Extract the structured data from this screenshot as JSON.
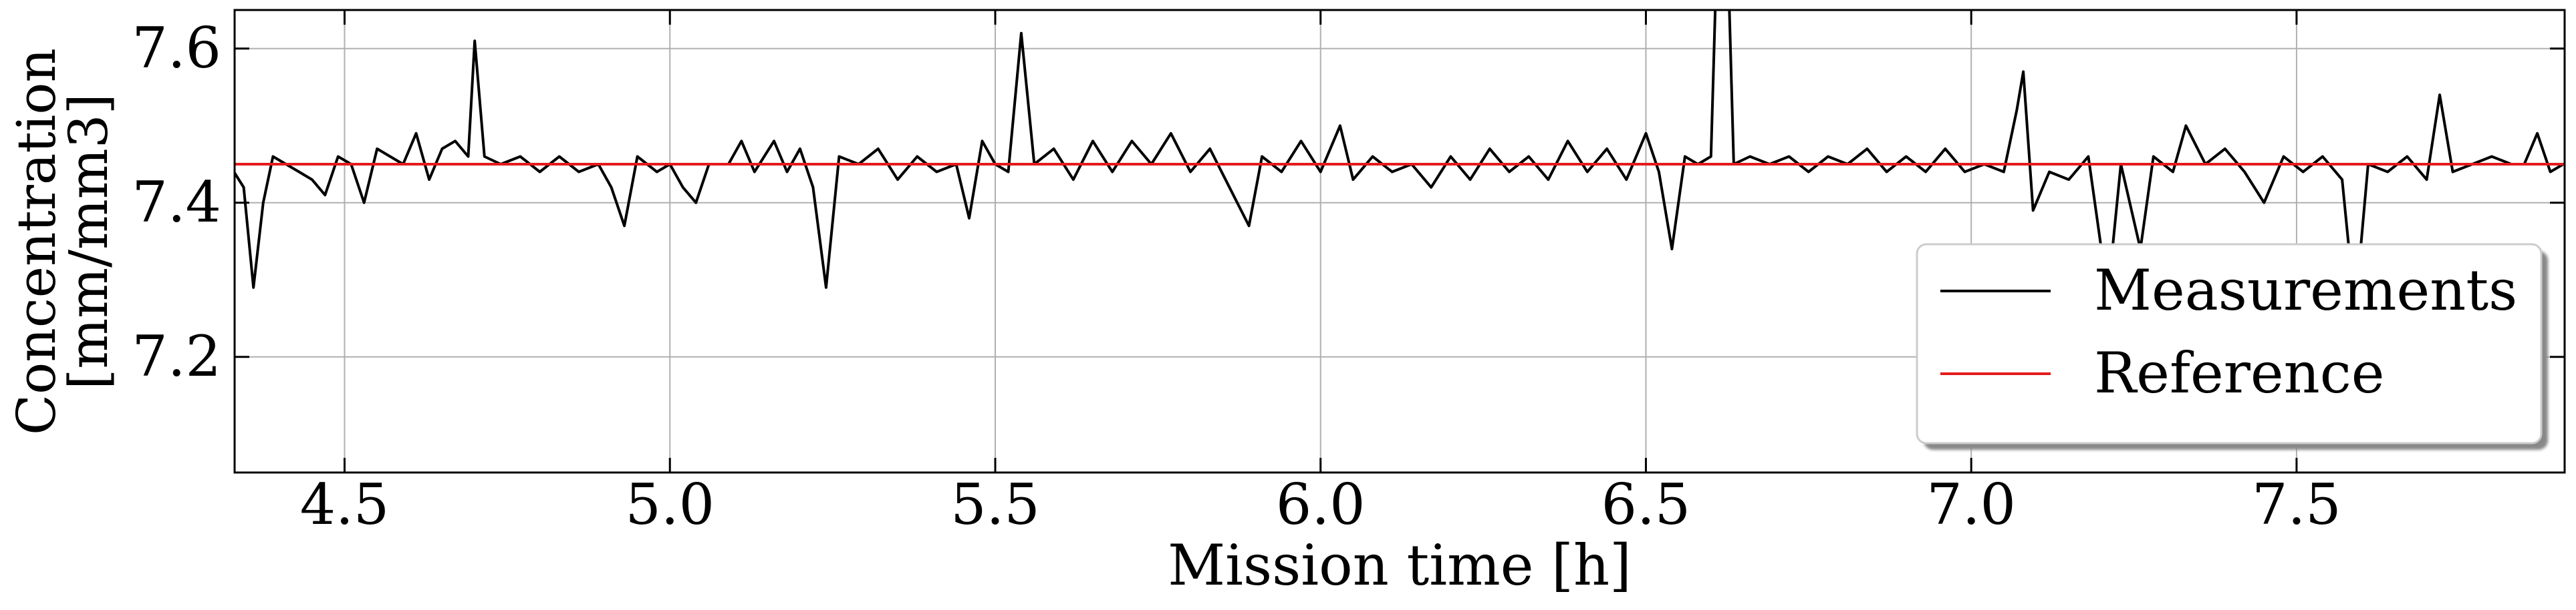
{
  "chart_data": {
    "type": "line",
    "x_label": "Mission time [h]",
    "y_label_lines": [
      "Concentration",
      "[mm/mm3]"
    ],
    "xlim": [
      4.331,
      7.912
    ],
    "ylim": [
      7.05,
      7.65
    ],
    "xticks": [
      4.5,
      {
        "value": 5,
        "label": "5.0"
      },
      5.5,
      {
        "value": 6,
        "label": "6.0"
      },
      6.5,
      {
        "value": 7,
        "label": "7.0"
      },
      7.5
    ],
    "yticks": [
      7.2,
      7.4,
      7.6
    ],
    "grid": true,
    "legend": "lower right",
    "series": [
      {
        "name": "Measurements",
        "color": "#000000",
        "x": [
          4.33,
          4.345,
          4.36,
          4.375,
          4.39,
          4.41,
          4.43,
          4.45,
          4.47,
          4.49,
          4.51,
          4.53,
          4.55,
          4.57,
          4.59,
          4.61,
          4.63,
          4.65,
          4.67,
          4.69,
          4.7,
          4.715,
          4.74,
          4.77,
          4.8,
          4.83,
          4.86,
          4.89,
          4.91,
          4.93,
          4.95,
          4.98,
          5.0,
          5.02,
          5.04,
          5.06,
          5.09,
          5.11,
          5.13,
          5.16,
          5.18,
          5.2,
          5.22,
          5.24,
          5.26,
          5.29,
          5.32,
          5.35,
          5.38,
          5.41,
          5.44,
          5.46,
          5.48,
          5.5,
          5.52,
          5.54,
          5.56,
          5.59,
          5.62,
          5.65,
          5.68,
          5.71,
          5.74,
          5.77,
          5.8,
          5.83,
          5.86,
          5.89,
          5.91,
          5.94,
          5.97,
          6.0,
          6.03,
          6.05,
          6.08,
          6.11,
          6.14,
          6.17,
          6.2,
          6.23,
          6.26,
          6.29,
          6.32,
          6.35,
          6.38,
          6.41,
          6.44,
          6.47,
          6.5,
          6.52,
          6.54,
          6.56,
          6.58,
          6.6,
          6.61,
          6.625,
          6.635,
          6.66,
          6.69,
          6.72,
          6.75,
          6.78,
          6.81,
          6.84,
          6.87,
          6.9,
          6.93,
          6.96,
          6.99,
          7.02,
          7.05,
          7.07,
          7.08,
          7.095,
          7.12,
          7.15,
          7.18,
          7.21,
          7.23,
          7.26,
          7.28,
          7.31,
          7.33,
          7.36,
          7.39,
          7.42,
          7.45,
          7.48,
          7.51,
          7.54,
          7.57,
          7.59,
          7.61,
          7.64,
          7.67,
          7.7,
          7.72,
          7.74,
          7.77,
          7.8,
          7.83,
          7.85,
          7.87,
          7.89,
          7.91
        ],
        "values": [
          7.44,
          7.42,
          7.29,
          7.4,
          7.46,
          7.45,
          7.44,
          7.43,
          7.41,
          7.46,
          7.45,
          7.4,
          7.47,
          7.46,
          7.45,
          7.49,
          7.43,
          7.47,
          7.48,
          7.46,
          7.61,
          7.46,
          7.45,
          7.46,
          7.44,
          7.46,
          7.44,
          7.45,
          7.42,
          7.37,
          7.46,
          7.44,
          7.45,
          7.42,
          7.4,
          7.45,
          7.45,
          7.48,
          7.44,
          7.48,
          7.44,
          7.47,
          7.42,
          7.29,
          7.46,
          7.45,
          7.47,
          7.43,
          7.46,
          7.44,
          7.45,
          7.38,
          7.48,
          7.45,
          7.44,
          7.62,
          7.45,
          7.47,
          7.43,
          7.48,
          7.44,
          7.48,
          7.45,
          7.49,
          7.44,
          7.47,
          7.42,
          7.37,
          7.46,
          7.44,
          7.48,
          7.44,
          7.5,
          7.43,
          7.46,
          7.44,
          7.45,
          7.42,
          7.46,
          7.43,
          7.47,
          7.44,
          7.46,
          7.43,
          7.48,
          7.44,
          7.47,
          7.43,
          7.49,
          7.44,
          7.34,
          7.46,
          7.45,
          7.46,
          7.75,
          7.75,
          7.45,
          7.46,
          7.45,
          7.46,
          7.44,
          7.46,
          7.45,
          7.47,
          7.44,
          7.46,
          7.44,
          7.47,
          7.44,
          7.45,
          7.44,
          7.52,
          7.57,
          7.39,
          7.44,
          7.43,
          7.46,
          7.28,
          7.45,
          7.34,
          7.46,
          7.44,
          7.5,
          7.45,
          7.47,
          7.44,
          7.4,
          7.46,
          7.44,
          7.46,
          7.43,
          7.26,
          7.45,
          7.44,
          7.46,
          7.43,
          7.54,
          7.44,
          7.45,
          7.46,
          7.45,
          7.45,
          7.49,
          7.44,
          7.45
        ]
      },
      {
        "name": "Reference",
        "color": "#e41a1c",
        "x": [
          4.331,
          7.912
        ],
        "values": [
          7.45,
          7.45
        ]
      }
    ]
  }
}
